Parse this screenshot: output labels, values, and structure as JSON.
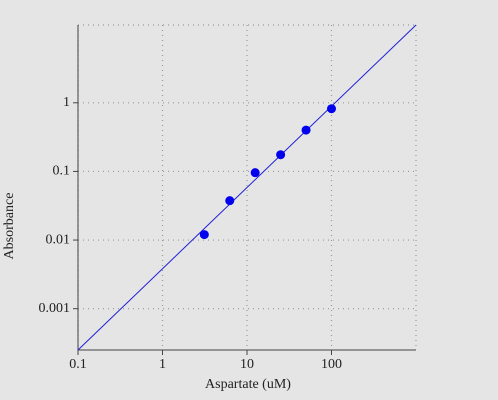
{
  "chart_data": {
    "type": "scatter",
    "x_label": "Aspartate (uM)",
    "y_label": "Absorbance",
    "x": [
      3.125,
      6.25,
      12.5,
      25,
      50,
      100
    ],
    "series": [
      {
        "color": "#0000ee",
        "values": [
          0.012,
          0.0375,
          0.096,
          0.175,
          0.4,
          0.82
        ]
      }
    ],
    "fit_line": {
      "color": "#1f1fd8",
      "x": [
        0.1,
        1000
      ],
      "y": [
        0.00025,
        13.6
      ]
    },
    "xlim": [
      0.1,
      1000
    ],
    "ylim": [
      0.00025,
      13.6
    ],
    "xticks": [
      0.1,
      1,
      10,
      100
    ],
    "yticks": [
      0.001,
      0.01,
      0.1,
      1
    ],
    "xscale": "log",
    "yscale": "log",
    "grid": true
  }
}
